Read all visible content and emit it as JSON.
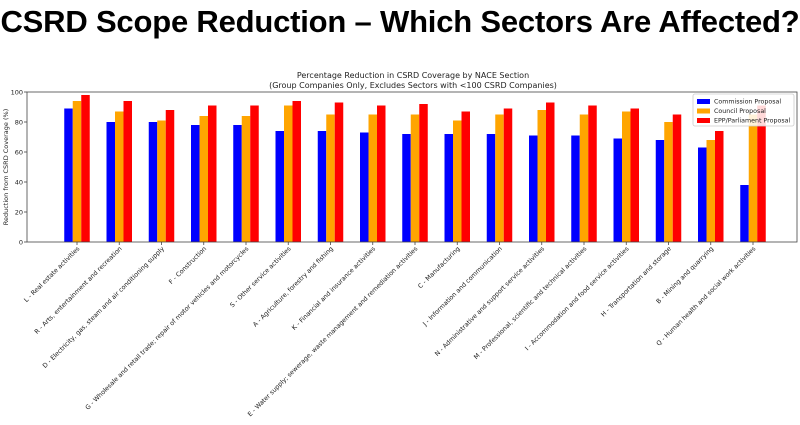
{
  "headline": "CSRD Scope Reduction – Which Sectors Are Affected?",
  "colors": {
    "commission": "#0000ff",
    "council": "#ffa500",
    "parliament": "#ff0000",
    "headline_text": "#000000",
    "axis": "#444444"
  },
  "chart_data": {
    "type": "bar",
    "title": "Percentage Reduction in CSRD Coverage by NACE Section",
    "subtitle": "(Group Companies Only, Excludes Sectors with <100 CSRD Companies)",
    "xlabel": "",
    "ylabel": "Reduction from CSRD Coverage (%)",
    "ylim": [
      0,
      100
    ],
    "yticks": [
      0,
      20,
      40,
      60,
      80,
      100
    ],
    "grid": false,
    "legend_position": "top-right",
    "categories": [
      "L - Real estate activities",
      "R - Arts, entertainment and recreation",
      "D - Electricity, gas, steam and air conditioning supply",
      "F - Construction",
      "G - Wholesale and retail trade; repair of motor vehicles and motorcycles",
      "S - Other service activities",
      "A - Agriculture, forestry and fishing",
      "K - Financial and insurance activities",
      "E - Water supply; sewerage, waste management and remediation activities",
      "C - Manufacturing",
      "J - Information and communication",
      "N - Administrative and support service activities",
      "M - Professional, scientific and technical activities",
      "I - Accommodation and food service activities",
      "H - Transportation and storage",
      "B - Mining and quarrying",
      "Q - Human health and social work activities"
    ],
    "series": [
      {
        "name": "Commission Proposal",
        "color": "#0000ff",
        "values": [
          89,
          80,
          80,
          78,
          78,
          74,
          74,
          73,
          72,
          72,
          72,
          71,
          71,
          69,
          68,
          63,
          38
        ]
      },
      {
        "name": "Council Proposal",
        "color": "#ffa500",
        "values": [
          94,
          87,
          81,
          84,
          84,
          91,
          85,
          85,
          85,
          81,
          85,
          88,
          85,
          87,
          80,
          68,
          85
        ]
      },
      {
        "name": "EPP/Parliament Proposal",
        "color": "#ff0000",
        "values": [
          98,
          94,
          88,
          91,
          91,
          94,
          93,
          91,
          92,
          87,
          89,
          93,
          91,
          89,
          85,
          74,
          91
        ]
      }
    ]
  }
}
